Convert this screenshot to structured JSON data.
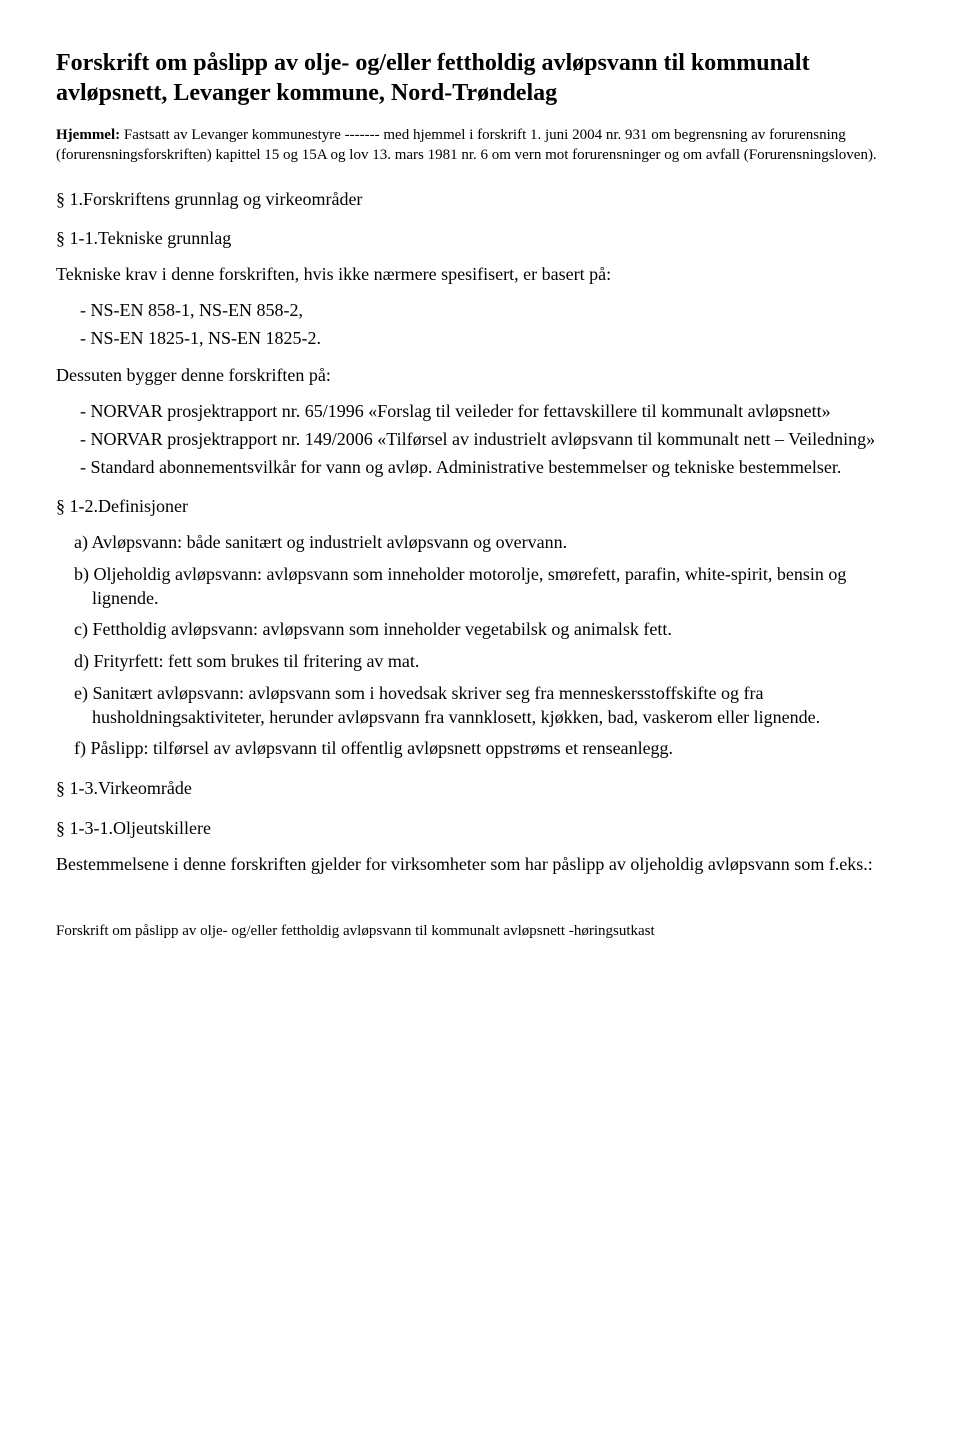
{
  "title": "Forskrift om påslipp av olje- og/eller fettholdig avløpsvann til kommunalt avløpsnett, Levanger kommune, Nord-Trøndelag",
  "hjemmel": {
    "label": "Hjemmel:",
    "text": " Fastsatt av Levanger kommunestyre ------- med hjemmel i forskrift 1. juni 2004 nr. 931 om begrensning av forurensning (forurensningsforskriften) kapittel 15 og 15A og lov 13. mars 1981 nr. 6 om vern mot forurensninger og om avfall (Forurensningsloven)."
  },
  "s1": {
    "heading": "§ 1.Forskriftens grunnlag og virkeområder",
    "s1_1": {
      "heading": "§ 1-1.Tekniske grunnlag",
      "intro": "Tekniske krav i denne forskriften, hvis ikke nærmere spesifisert, er basert på:",
      "items": [
        "- NS-EN 858-1, NS-EN 858-2,",
        "- NS-EN 1825-1, NS-EN 1825-2."
      ],
      "also": "Dessuten bygger denne forskriften på:",
      "extra": [
        "- NORVAR prosjektrapport nr. 65/1996 «Forslag til veileder for fettavskillere til kommunalt avløpsnett»",
        "- NORVAR prosjektrapport nr. 149/2006 «Tilførsel av industrielt avløpsvann til kommunalt nett – Veiledning»",
        "- Standard abonnementsvilkår for vann og avløp. Administrative bestemmelser og tekniske bestemmelser."
      ]
    },
    "s1_2": {
      "heading": "§ 1-2.Definisjoner",
      "defs": [
        "a) Avløpsvann: både sanitært og industrielt avløpsvann og overvann.",
        "b) Oljeholdig avløpsvann: avløpsvann som inneholder motorolje, smørefett, parafin, white-spirit, bensin og lignende.",
        "c) Fettholdig avløpsvann: avløpsvann som inneholder vegetabilsk og animalsk fett.",
        "d) Frityrfett: fett som brukes til fritering av mat.",
        "e) Sanitært avløpsvann: avløpsvann som i hovedsak skriver seg fra menneskersstoffskifte og fra husholdningsaktiviteter, herunder avløpsvann fra vannklosett, kjøkken, bad, vaskerom eller lignende.",
        "f) Påslipp: tilførsel av avløpsvann til offentlig avløpsnett oppstrøms et renseanlegg."
      ]
    },
    "s1_3": {
      "heading": "§ 1-3.Virkeområde",
      "s1_3_1": {
        "heading": "§ 1-3-1.Oljeutskillere",
        "text": "Bestemmelsene i denne forskriften gjelder for virksomheter som har påslipp av oljeholdig avløpsvann som f.eks.:"
      }
    }
  },
  "footer": "Forskrift om påslipp av olje- og/eller fettholdig avløpsvann til kommunalt avløpsnett -høringsutkast"
}
